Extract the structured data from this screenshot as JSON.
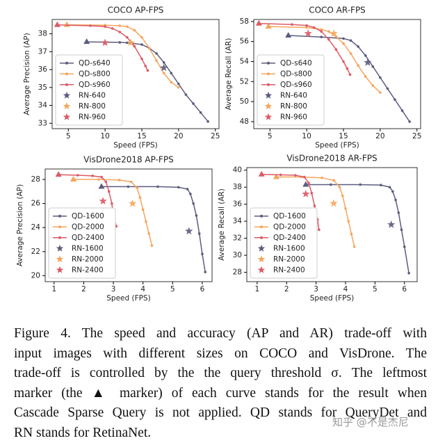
{
  "chart_data": [
    {
      "type": "line",
      "title": "COCO AP-FPS",
      "x_label": "Speed (FPS)",
      "y_label": "Average Precision (AP)",
      "xlim": [
        2.8,
        25.5
      ],
      "xticks": [
        5,
        10,
        15,
        20,
        25
      ],
      "ylim": [
        32.7,
        38.8
      ],
      "yticks": [
        33,
        34,
        35,
        36,
        37,
        38
      ],
      "legend": "lower left",
      "series": [
        {
          "name": "QD-s640",
          "color": "#5b5c7e",
          "mode": "line",
          "x": [
            7.5,
            12,
            13,
            15,
            16,
            17,
            18,
            19,
            20,
            21,
            22,
            23,
            24
          ],
          "values": [
            37.55,
            37.52,
            37.5,
            37.4,
            37.2,
            36.9,
            36.4,
            35.8,
            35.2,
            34.6,
            34.1,
            33.6,
            33.1
          ]
        },
        {
          "name": "QD-s800",
          "color": "#f6a45b",
          "mode": "line",
          "x": [
            4.8,
            10,
            12,
            13,
            14,
            15,
            16,
            17,
            18,
            19,
            20
          ],
          "values": [
            38.5,
            38.48,
            38.45,
            38.4,
            38.2,
            37.8,
            37.2,
            36.5,
            35.8,
            35.3,
            35.0
          ]
        },
        {
          "name": "QD-s960",
          "color": "#dc5964",
          "mode": "line",
          "x": [
            3.5,
            8,
            10,
            11,
            12,
            13,
            14,
            15,
            15.5,
            15.8
          ],
          "values": [
            38.5,
            38.45,
            38.4,
            38.3,
            38.1,
            37.8,
            37.3,
            36.6,
            36.2,
            35.95
          ]
        },
        {
          "name": "RN-640",
          "color": "#5b5c7e",
          "mode": "star",
          "x": [
            18
          ],
          "values": [
            36.1
          ]
        },
        {
          "name": "RN-800",
          "color": "#f6a45b",
          "mode": "star",
          "x": [
            13.5
          ],
          "values": [
            37.5
          ]
        },
        {
          "name": "RN-960",
          "color": "#dc5964",
          "mode": "star",
          "x": [
            10
          ],
          "values": [
            37.5
          ]
        }
      ]
    },
    {
      "type": "line",
      "title": "COCO AR-FPS",
      "x_label": "Speed (FPS)",
      "y_label": "Average Recall (AR)",
      "xlim": [
        2.8,
        25.5
      ],
      "xticks": [
        5,
        10,
        15,
        20,
        25
      ],
      "ylim": [
        47.3,
        58.2
      ],
      "yticks": [
        48,
        50,
        52,
        54,
        56,
        58
      ],
      "legend": "lower left",
      "series": [
        {
          "name": "QD-s640",
          "color": "#5b5c7e",
          "mode": "line",
          "x": [
            7.5,
            12,
            15,
            16,
            17,
            18,
            19,
            20,
            21,
            22,
            23,
            24
          ],
          "values": [
            56.6,
            56.45,
            56.3,
            56.1,
            55.5,
            54.6,
            53.5,
            52.4,
            51.3,
            50.2,
            49.1,
            48.0
          ]
        },
        {
          "name": "QD-s800",
          "color": "#f6a45b",
          "mode": "line",
          "x": [
            4.8,
            10,
            12,
            13,
            14,
            15,
            16,
            17,
            18,
            19,
            20
          ],
          "values": [
            57.5,
            57.4,
            57.2,
            57.0,
            56.5,
            55.8,
            54.8,
            53.6,
            52.5,
            51.6,
            50.9
          ]
        },
        {
          "name": "QD-s960",
          "color": "#dc5964",
          "mode": "line",
          "x": [
            3.5,
            8,
            10,
            11,
            12,
            13,
            14,
            15,
            15.5,
            15.9
          ],
          "values": [
            57.8,
            57.7,
            57.6,
            57.4,
            57.0,
            56.2,
            55.2,
            54.0,
            53.3,
            52.7
          ]
        },
        {
          "name": "RN-640",
          "color": "#5b5c7e",
          "mode": "star",
          "x": [
            18.3
          ],
          "values": [
            53.9
          ]
        },
        {
          "name": "RN-800",
          "color": "#f6a45b",
          "mode": "star",
          "x": [
            13.7
          ],
          "values": [
            56.8
          ]
        },
        {
          "name": "RN-960",
          "color": "#dc5964",
          "mode": "star",
          "x": [
            10.2
          ],
          "values": [
            56.8
          ]
        }
      ]
    },
    {
      "type": "line",
      "title": "VisDrone2018 AP-FPS",
      "x_label": "Speed (FPS)",
      "y_label": "Average Precision (AP)",
      "xlim": [
        0.7,
        6.33
      ],
      "xticks": [
        1,
        2,
        3,
        4,
        5,
        6
      ],
      "ylim": [
        19.5,
        28.87
      ],
      "yticks": [
        20,
        22,
        24,
        26,
        28
      ],
      "legend": "lower left",
      "series": [
        {
          "name": "QD-1600",
          "color": "#5b5c7e",
          "mode": "line",
          "x": [
            2.6,
            3.5,
            4.5,
            5.2,
            5.5,
            5.6,
            5.7,
            5.8,
            5.9,
            6.0,
            6.1
          ],
          "values": [
            27.4,
            27.4,
            27.4,
            27.35,
            27.2,
            26.8,
            26.0,
            25.0,
            23.5,
            21.8,
            20.3
          ]
        },
        {
          "name": "QD-2000",
          "color": "#f6a45b",
          "mode": "line",
          "x": [
            1.65,
            2.5,
            3.2,
            3.6,
            3.8,
            3.9,
            4.0,
            4.1,
            4.2,
            4.3
          ],
          "values": [
            28.0,
            28.0,
            27.95,
            27.8,
            27.3,
            26.5,
            25.5,
            24.5,
            23.5,
            22.5
          ]
        },
        {
          "name": "QD-2400",
          "color": "#dc5964",
          "mode": "line",
          "x": [
            1.15,
            1.8,
            2.3,
            2.6,
            2.75,
            2.85,
            2.95,
            3.0,
            3.1
          ],
          "values": [
            28.4,
            28.35,
            28.3,
            28.2,
            27.8,
            27.0,
            26.0,
            25.0,
            24.1
          ]
        },
        {
          "name": "RN-1600",
          "color": "#5b5c7e",
          "mode": "star",
          "x": [
            5.55
          ],
          "values": [
            23.7
          ]
        },
        {
          "name": "RN-2000",
          "color": "#f6a45b",
          "mode": "star",
          "x": [
            3.65
          ],
          "values": [
            26.0
          ]
        },
        {
          "name": "RN-2400",
          "color": "#dc5964",
          "mode": "star",
          "x": [
            2.65
          ],
          "values": [
            26.2
          ]
        }
      ]
    },
    {
      "type": "line",
      "title": "VisDrone2018 AR-FPS",
      "x_label": "Speed (FPS)",
      "y_label": "Average Recall (AR)",
      "xlim": [
        0.65,
        6.43
      ],
      "xticks": [
        1,
        2,
        3,
        4,
        5,
        6
      ],
      "ylim": [
        26.9,
        40.3
      ],
      "yticks": [
        28,
        30,
        32,
        34,
        36,
        38,
        40
      ],
      "legend": "lower left",
      "series": [
        {
          "name": "QD-1600",
          "color": "#5b5c7e",
          "mode": "line",
          "x": [
            2.65,
            3.5,
            4.5,
            5.2,
            5.5,
            5.6,
            5.7,
            5.8,
            5.9,
            6.0,
            6.15
          ],
          "values": [
            38.3,
            38.3,
            38.3,
            38.25,
            38.0,
            37.5,
            36.5,
            35.0,
            33.0,
            31.0,
            27.9
          ]
        },
        {
          "name": "QD-2000",
          "color": "#f6a45b",
          "mode": "line",
          "x": [
            1.65,
            2.5,
            3.2,
            3.6,
            3.8,
            3.9,
            4.0,
            4.1,
            4.2,
            4.3
          ],
          "values": [
            39.2,
            39.2,
            39.1,
            38.8,
            38.0,
            37.0,
            35.5,
            34.0,
            32.5,
            31.0
          ]
        },
        {
          "name": "QD-2400",
          "color": "#dc5964",
          "mode": "line",
          "x": [
            1.15,
            1.8,
            2.3,
            2.6,
            2.75,
            2.85,
            2.95,
            3.05,
            3.1
          ],
          "values": [
            39.5,
            39.45,
            39.4,
            39.2,
            38.5,
            37.3,
            35.8,
            34.2,
            33.0
          ]
        },
        {
          "name": "RN-1600",
          "color": "#5b5c7e",
          "mode": "star",
          "x": [
            5.55
          ],
          "values": [
            33.6
          ]
        },
        {
          "name": "RN-2000",
          "color": "#f6a45b",
          "mode": "star",
          "x": [
            3.6
          ],
          "values": [
            36.1
          ]
        },
        {
          "name": "RN-2400",
          "color": "#dc5964",
          "mode": "star",
          "x": [
            2.65
          ],
          "values": [
            37.2
          ]
        }
      ]
    }
  ],
  "caption": [
    "Figure 4.  The speed and accuracy (AP and AR) trade-off with",
    "input images with different sizes on COCO and VisDrone.  The",
    "trade-off is controlled by the the query threshold σ. The leftmost",
    "marker (the ▲ marker) of each curve stands for the result when",
    "Cascade Sparse Query is not applied. QD stands for QueryDet and",
    "RN stands for RetinaNet."
  ],
  "watermark": "知乎 @不是杰尼"
}
